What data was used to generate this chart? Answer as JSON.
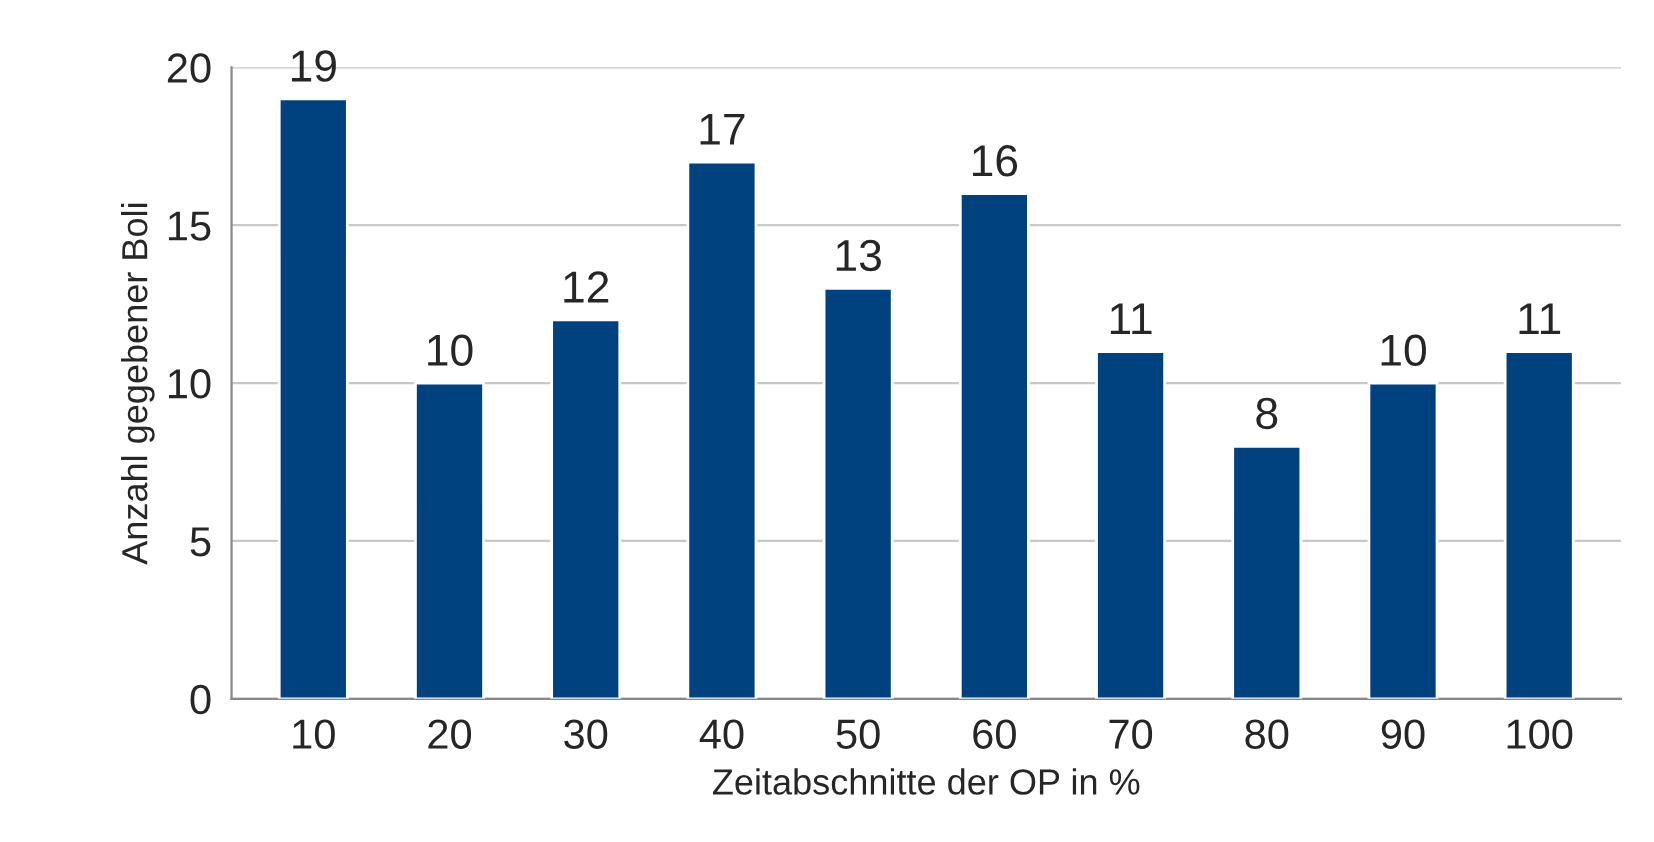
{
  "chart_data": {
    "type": "bar",
    "xlabel": "Zeitabschnitte der OP in %",
    "ylabel": "Anzahl gegebener Boli",
    "categories": [
      "10",
      "20",
      "30",
      "40",
      "50",
      "60",
      "70",
      "80",
      "90",
      "100"
    ],
    "values": [
      19,
      10,
      12,
      17,
      13,
      16,
      11,
      8,
      10,
      11
    ],
    "color": "#00427f",
    "ylim": [
      0,
      20
    ],
    "yticks": [
      0,
      5,
      10,
      15,
      20
    ],
    "grid": "y",
    "data_labels": true
  }
}
